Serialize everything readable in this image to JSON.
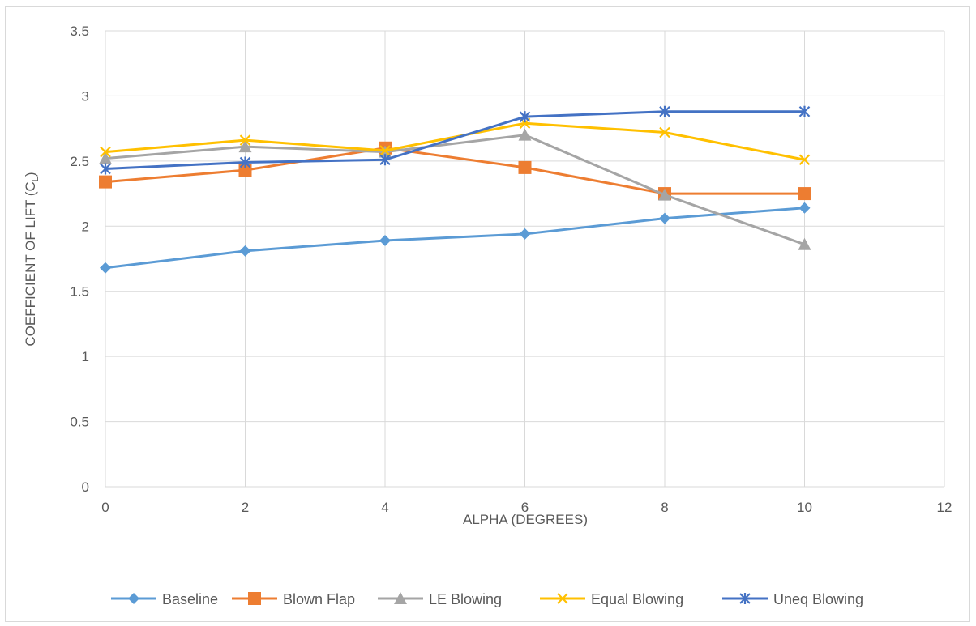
{
  "chart_data": {
    "type": "line",
    "title": "",
    "xlabel": "ALPHA (DEGREES)",
    "ylabel": "COEFFICIENT OF LIFT (C",
    "ylabel_subscript": "L",
    "ylabel_suffix": ")",
    "xlim": [
      0,
      12
    ],
    "ylim": [
      0,
      3.5
    ],
    "x_ticks": [
      "0",
      "2",
      "4",
      "6",
      "8",
      "10",
      "12"
    ],
    "y_ticks": [
      "0",
      "0.5",
      "1",
      "1.5",
      "2",
      "2.5",
      "3",
      "3.5"
    ],
    "grid": true,
    "legend_position": "bottom",
    "x": [
      0,
      2,
      4,
      6,
      8,
      10
    ],
    "series": [
      {
        "name": "Baseline",
        "color": "#5B9BD5",
        "marker": "diamond",
        "values": [
          1.68,
          1.81,
          1.89,
          1.94,
          2.06,
          2.14
        ]
      },
      {
        "name": "Blown Flap",
        "color": "#ED7D31",
        "marker": "square",
        "values": [
          2.34,
          2.43,
          2.6,
          2.45,
          2.25,
          2.25
        ]
      },
      {
        "name": "LE Blowing",
        "color": "#A5A5A5",
        "marker": "triangle",
        "values": [
          2.52,
          2.61,
          2.57,
          2.7,
          2.24,
          1.86
        ]
      },
      {
        "name": "Equal Blowing",
        "color": "#FFC000",
        "marker": "x",
        "values": [
          2.57,
          2.66,
          2.58,
          2.79,
          2.72,
          2.51
        ]
      },
      {
        "name": "Uneq Blowing",
        "color": "#4472C4",
        "marker": "star",
        "values": [
          2.44,
          2.49,
          2.51,
          2.84,
          2.88,
          2.88
        ]
      }
    ]
  }
}
